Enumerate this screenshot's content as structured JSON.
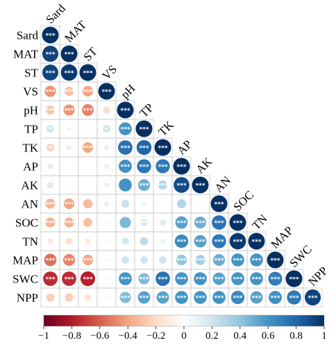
{
  "chart_data": {
    "type": "heatmap",
    "subtype": "correlation-lower-triangle-circles",
    "variables": [
      "Sard",
      "MAT",
      "ST",
      "VS",
      "pH",
      "TP",
      "TK",
      "AP",
      "AK",
      "AN",
      "SOC",
      "TN",
      "MAP",
      "SWC",
      "NPP"
    ],
    "matrix": [
      [
        1
      ],
      [
        0.93,
        1
      ],
      [
        0.92,
        0.97,
        1
      ],
      [
        -0.45,
        -0.3,
        -0.4,
        1
      ],
      [
        -0.28,
        -0.45,
        -0.5,
        -0.18,
        1
      ],
      [
        0.2,
        0.08,
        0.03,
        0.2,
        0.6,
        1
      ],
      [
        -0.22,
        0.1,
        -0.4,
        0.1,
        0.75,
        0.8,
        1
      ],
      [
        0.12,
        0.0,
        0.0,
        0.1,
        0.62,
        0.72,
        0.72,
        1
      ],
      [
        0.15,
        0.02,
        0.0,
        0.1,
        0.6,
        0.5,
        0.3,
        0.9,
        1
      ],
      [
        -0.35,
        -0.4,
        -0.32,
        0.1,
        0.22,
        0.08,
        0.0,
        0.3,
        0.0,
        1
      ],
      [
        -0.35,
        -0.35,
        -0.3,
        0.05,
        0.45,
        0.18,
        0.14,
        0.55,
        0.5,
        0.75,
        1
      ],
      [
        -0.12,
        -0.18,
        -0.12,
        0.05,
        0.18,
        0.25,
        0.1,
        0.65,
        0.55,
        0.72,
        0.97,
        1
      ],
      [
        -0.55,
        -0.5,
        -0.4,
        0.05,
        0.2,
        0.2,
        0.2,
        0.4,
        0.35,
        0.5,
        0.6,
        0.6,
        1
      ],
      [
        -0.75,
        -0.75,
        -0.78,
        0.05,
        0.6,
        0.45,
        0.75,
        0.6,
        0.6,
        0.55,
        0.6,
        0.6,
        0.7,
        1
      ],
      [
        -0.25,
        -0.25,
        -0.15,
        0.05,
        0.45,
        0.55,
        0.55,
        0.6,
        0.6,
        0.6,
        0.65,
        0.55,
        0.62,
        0.72,
        0.93
      ]
    ],
    "significance": [
      [
        "***"
      ],
      [
        "***",
        "***"
      ],
      [
        "***",
        "***",
        "***"
      ],
      [
        "***",
        "***",
        "***",
        "***"
      ],
      [
        "***",
        "***",
        "***",
        "",
        "***"
      ],
      [
        "*",
        "",
        "",
        "*",
        "***",
        "***"
      ],
      [
        "*",
        "",
        "***",
        "",
        "***",
        "***",
        "***"
      ],
      [
        "",
        "",
        "",
        "",
        "***",
        "***",
        "***",
        "***"
      ],
      [
        "",
        "",
        "",
        "",
        "",
        "***",
        "***",
        "***",
        "***"
      ],
      [
        "***",
        "***",
        "",
        "",
        "",
        "",
        "",
        "",
        "",
        "***"
      ],
      [
        "***",
        "***",
        "",
        "",
        "",
        "***",
        "",
        "***",
        "***",
        "***",
        "***"
      ],
      [
        "",
        "",
        "",
        "",
        "",
        "",
        "",
        "***",
        "***",
        "***",
        "***",
        "***"
      ],
      [
        "***",
        "***",
        "***",
        "",
        "",
        "",
        "",
        "***",
        "***",
        "***",
        "***",
        "***",
        "***"
      ],
      [
        "***",
        "***",
        "***",
        "",
        "***",
        "***",
        "***",
        "***",
        "***",
        "***",
        "***",
        "***",
        "***",
        "***"
      ],
      [
        "",
        "",
        "",
        "",
        "***",
        "***",
        "***",
        "***",
        "***",
        "***",
        "***",
        "***",
        "***",
        "***",
        "***"
      ]
    ],
    "colorbar": {
      "ticks": [
        "−1",
        "−0.8",
        "−0.6",
        "−0.4",
        "−0.2",
        "0",
        "0.2",
        "0.4",
        "0.6",
        "0.8",
        "1"
      ],
      "range": [
        -1,
        1
      ],
      "colors": {
        "negative_strong": "#67001f",
        "negative": "#d6604d",
        "neutral": "#ffffff",
        "positive": "#4393c3",
        "positive_strong": "#053061"
      }
    },
    "grid": true
  }
}
